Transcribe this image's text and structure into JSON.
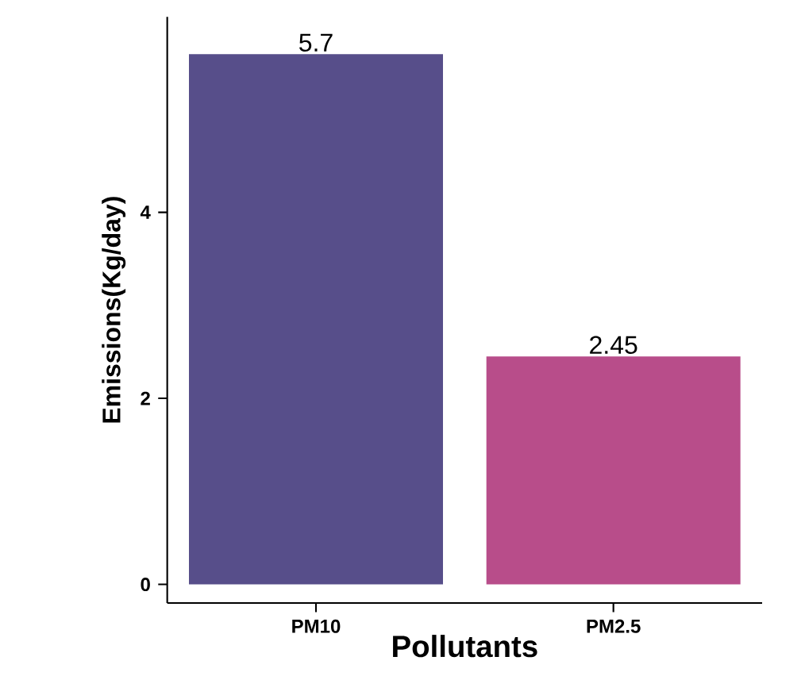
{
  "chart_data": {
    "type": "bar",
    "xlabel": "Pollutants",
    "ylabel": "Emissions(Kg/day)",
    "categories": [
      "PM10",
      "PM2.5"
    ],
    "values": [
      5.7,
      2.45
    ],
    "colors": [
      "#574e8a",
      "#b84d8a"
    ],
    "value_labels": [
      "5.7",
      "2.45"
    ],
    "ylim": [
      -0.2,
      6.1
    ],
    "yticks": [
      0,
      2,
      4
    ],
    "grid": false
  }
}
